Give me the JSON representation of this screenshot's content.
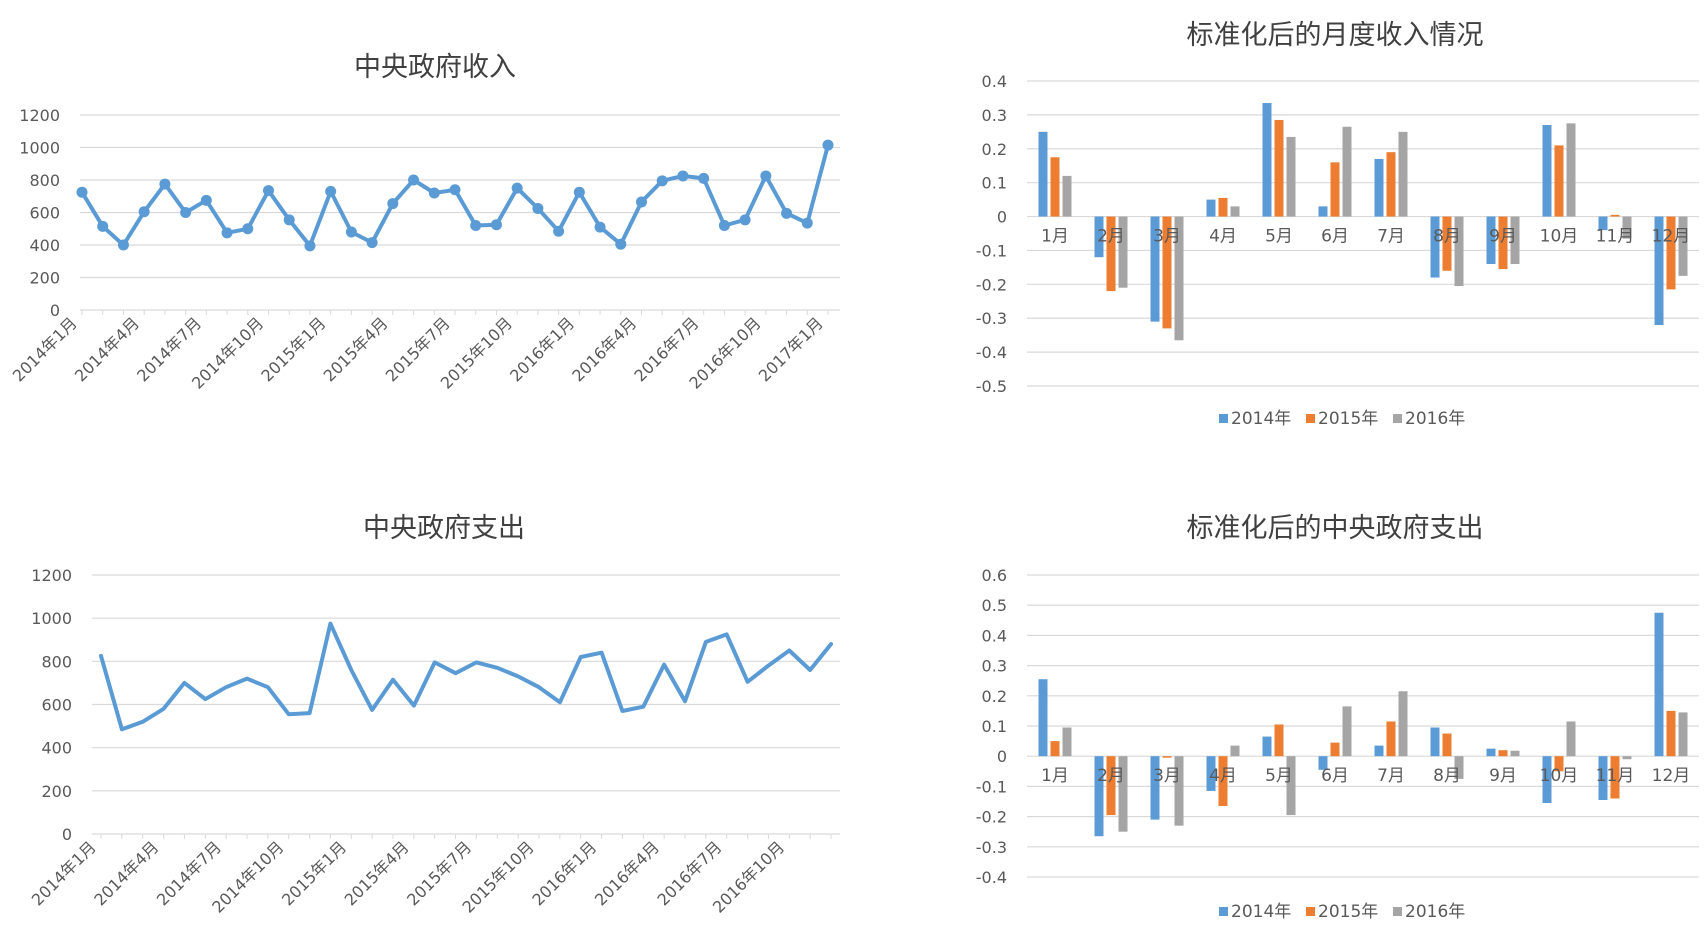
{
  "chart_data": [
    {
      "type": "line",
      "title": "中央政府收入",
      "ylim": [
        0,
        1200
      ],
      "yticks": [
        0,
        200,
        400,
        600,
        800,
        1000,
        1200
      ],
      "xtick_labels": [
        "2014年1月",
        "2014年4月",
        "2014年7月",
        "2014年10月",
        "2015年1月",
        "2015年4月",
        "2015年7月",
        "2015年10月",
        "2016年1月",
        "2016年4月",
        "2016年7月",
        "2016年10月",
        "2017年1月"
      ],
      "markers": true,
      "grid": true,
      "color": "#5b9bd5",
      "series": [
        {
          "values": [
            725,
            515,
            400,
            605,
            775,
            600,
            675,
            475,
            500,
            735,
            555,
            395,
            730,
            480,
            415,
            655,
            800,
            720,
            740,
            520,
            525,
            750,
            625,
            485,
            725,
            510,
            405,
            665,
            795,
            825,
            810,
            520,
            555,
            825,
            595,
            535,
            1015
          ]
        }
      ]
    },
    {
      "type": "bar",
      "title": "标准化后的月度收入情况",
      "ylim": [
        -0.5,
        0.4
      ],
      "yticks": [
        -0.5,
        -0.4,
        -0.3,
        -0.2,
        -0.1,
        0,
        0.1,
        0.2,
        0.3,
        0.4
      ],
      "ytick_labels": [
        "-0.5",
        "-0.4",
        "-0.3",
        "-0.2",
        "-0.1",
        "0",
        "0.1",
        "0.2",
        "0.3",
        "0.4"
      ],
      "categories": [
        "1月",
        "2月",
        "3月",
        "4月",
        "5月",
        "6月",
        "7月",
        "8月",
        "9月",
        "10月",
        "11月",
        "12月"
      ],
      "legend": "bottom",
      "grid": true,
      "series": [
        {
          "name": "2014年",
          "color": "#5b9bd5",
          "values": [
            0.25,
            -0.12,
            -0.31,
            0.05,
            0.335,
            0.03,
            0.17,
            -0.18,
            -0.14,
            0.27,
            -0.04,
            -0.32
          ]
        },
        {
          "name": "2015年",
          "color": "#ed7d31",
          "values": [
            0.175,
            -0.22,
            -0.33,
            0.055,
            0.285,
            0.16,
            0.19,
            -0.16,
            -0.155,
            0.21,
            0.005,
            -0.215
          ]
        },
        {
          "name": "2016年",
          "color": "#a5a5a5",
          "values": [
            0.12,
            -0.21,
            -0.365,
            0.03,
            0.235,
            0.265,
            0.25,
            -0.205,
            -0.14,
            0.275,
            -0.065,
            -0.175
          ]
        }
      ]
    },
    {
      "type": "line",
      "title": "中央政府支出",
      "ylim": [
        0,
        1200
      ],
      "yticks": [
        0,
        200,
        400,
        600,
        800,
        1000,
        1200
      ],
      "xtick_labels": [
        "2014年1月",
        "2014年4月",
        "2014年7月",
        "2014年10月",
        "2015年1月",
        "2015年4月",
        "2015年7月",
        "2015年10月",
        "2016年1月",
        "2016年4月",
        "2016年7月",
        "2016年10月"
      ],
      "markers": false,
      "grid": true,
      "color": "#5b9bd5",
      "series": [
        {
          "values": [
            825,
            485,
            520,
            580,
            700,
            625,
            680,
            720,
            680,
            555,
            560,
            975,
            760,
            575,
            715,
            595,
            795,
            745,
            795,
            770,
            730,
            680,
            610,
            820,
            840,
            570,
            590,
            785,
            615,
            890,
            925,
            705,
            780,
            850,
            760,
            880
          ]
        }
      ]
    },
    {
      "type": "bar",
      "title": "标准化后的中央政府支出",
      "ylim": [
        -0.4,
        0.6
      ],
      "yticks": [
        -0.4,
        -0.3,
        -0.2,
        -0.1,
        0,
        0.1,
        0.2,
        0.3,
        0.4,
        0.5,
        0.6
      ],
      "ytick_labels": [
        "-0.4",
        "-0.3",
        "-0.2",
        "-0.1",
        "0",
        "0.1",
        "0.2",
        "0.3",
        "0.4",
        "0.5",
        "0.6"
      ],
      "categories": [
        "1月",
        "2月",
        "3月",
        "4月",
        "5月",
        "6月",
        "7月",
        "8月",
        "9月",
        "10月",
        "11月",
        "12月"
      ],
      "legend": "bottom",
      "grid": true,
      "series": [
        {
          "name": "2014年",
          "color": "#5b9bd5",
          "values": [
            0.255,
            -0.265,
            -0.21,
            -0.115,
            0.065,
            -0.045,
            0.035,
            0.095,
            0.025,
            -0.155,
            -0.145,
            0.475
          ]
        },
        {
          "name": "2015年",
          "color": "#ed7d31",
          "values": [
            0.05,
            -0.195,
            -0.005,
            -0.165,
            0.105,
            0.045,
            0.115,
            0.075,
            0.02,
            -0.05,
            -0.14,
            0.15
          ]
        },
        {
          "name": "2016年",
          "color": "#a5a5a5",
          "values": [
            0.095,
            -0.25,
            -0.23,
            0.035,
            -0.195,
            0.165,
            0.215,
            -0.075,
            0.018,
            0.115,
            -0.01,
            0.145
          ]
        }
      ]
    }
  ]
}
